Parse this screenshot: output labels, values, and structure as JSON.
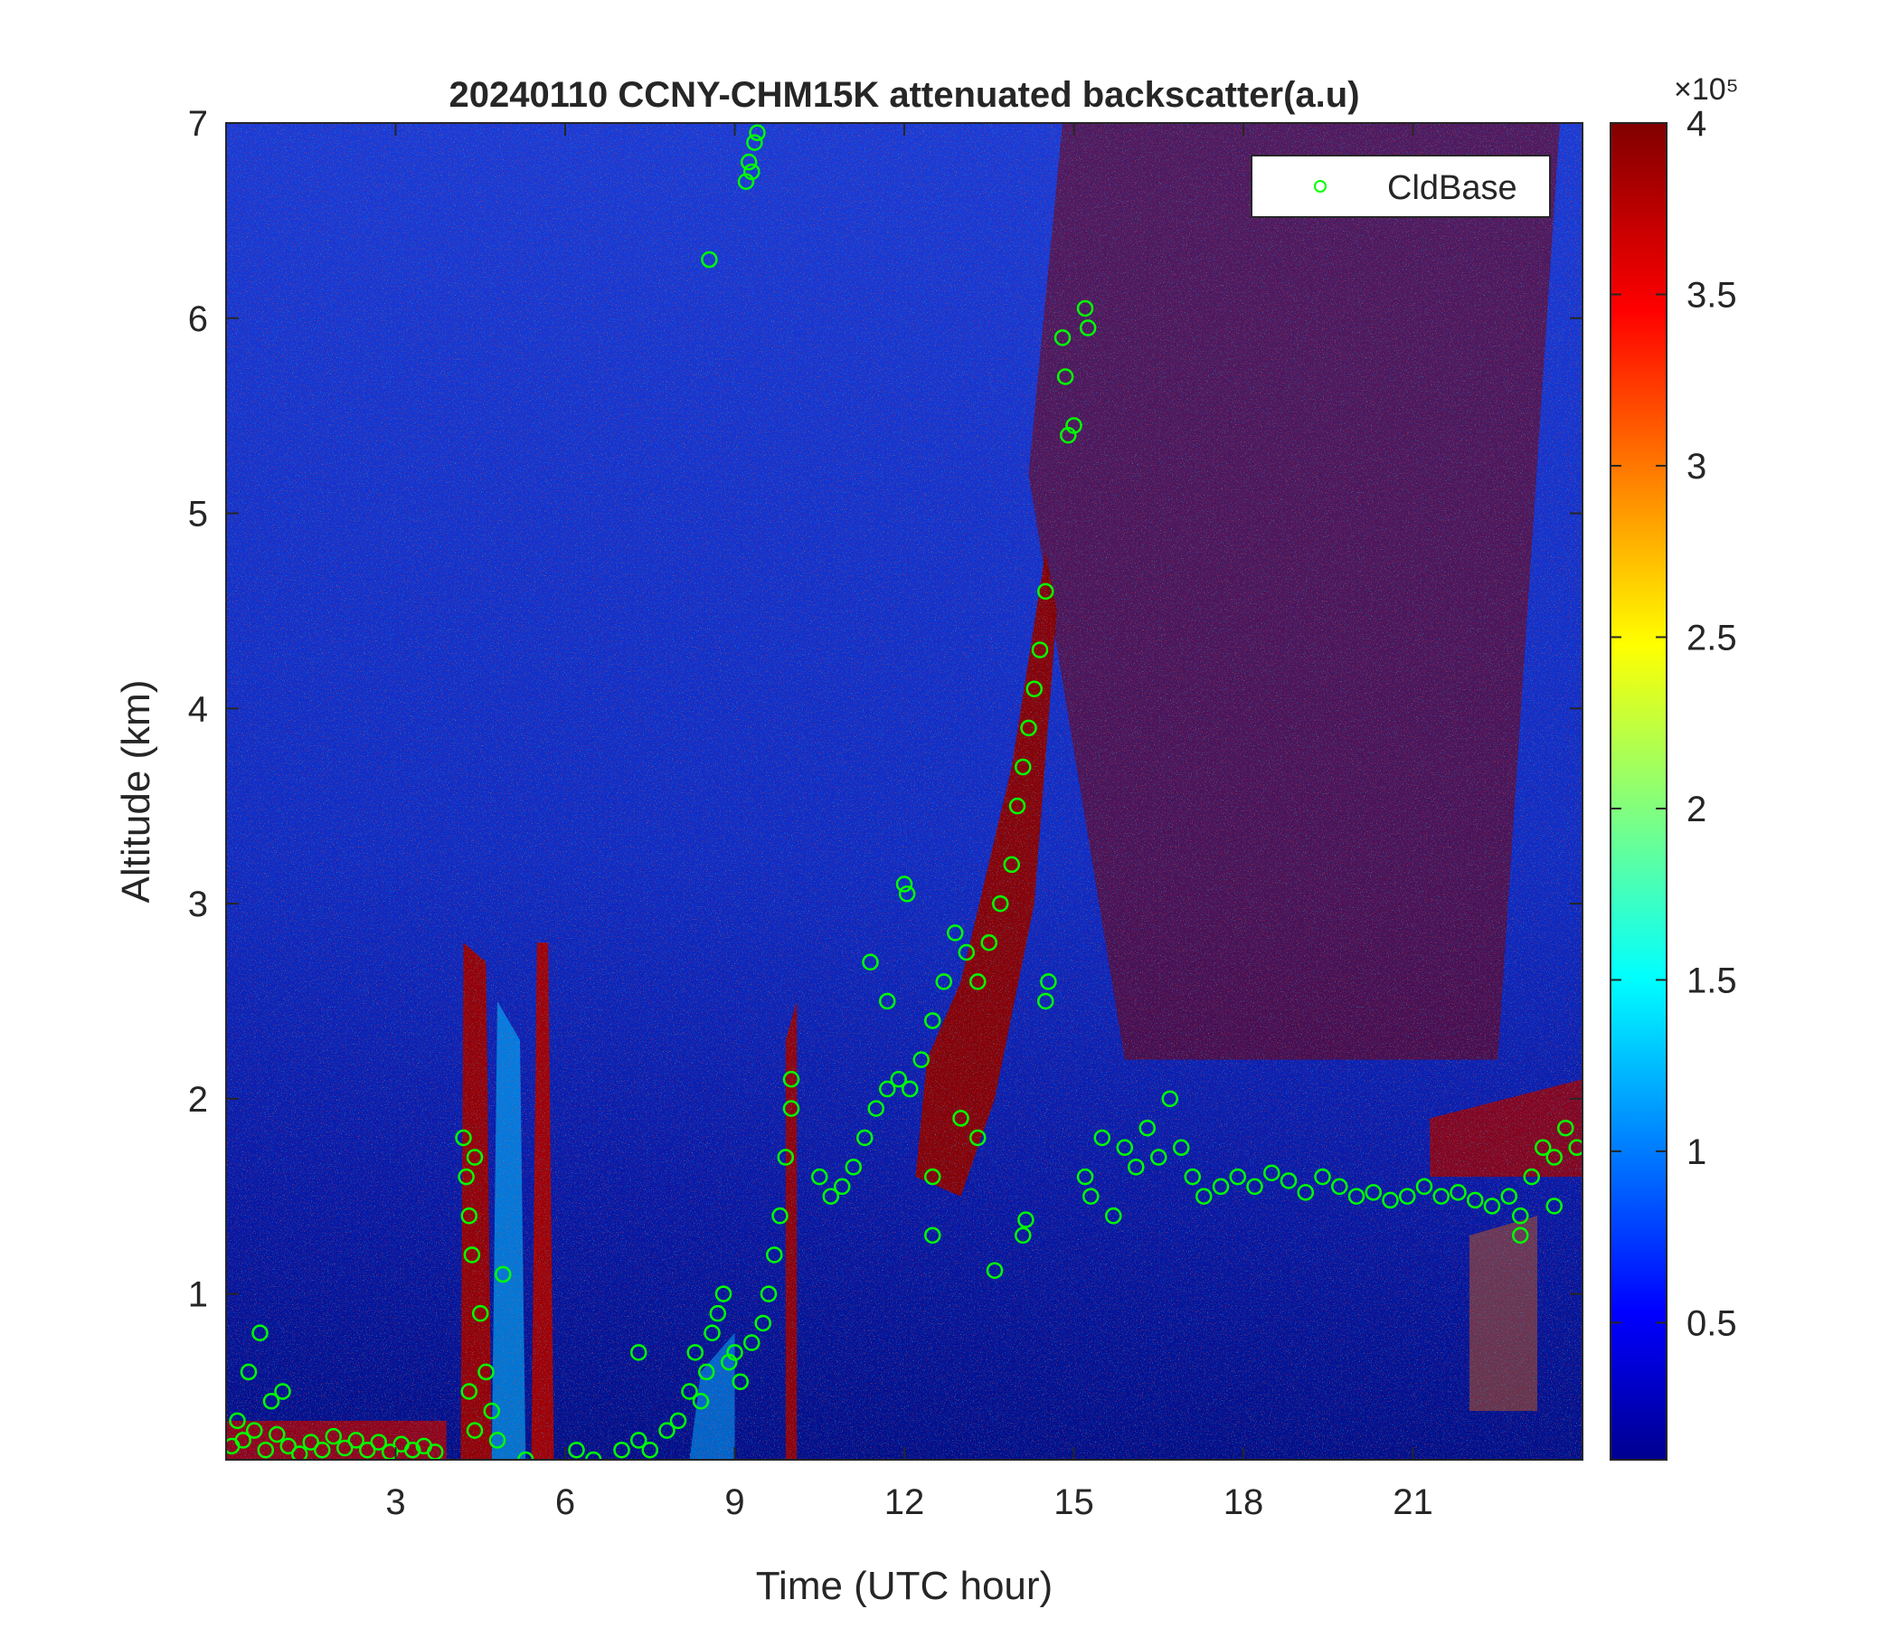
{
  "chart_data": {
    "type": "heatmap",
    "title": "20240110 CCNY-CHM15K attenuated backscatter(a.u)",
    "xlabel": "Time (UTC hour)",
    "ylabel": "Altitude (km)",
    "xlim": [
      0,
      24
    ],
    "ylim": [
      0.15,
      7
    ],
    "xticks": [
      3,
      6,
      9,
      12,
      15,
      18,
      21
    ],
    "yticks": [
      1,
      2,
      3,
      4,
      5,
      6,
      7
    ],
    "colorbar": {
      "colormap": "jet",
      "clim": [
        10000,
        400000
      ],
      "exponent_label": "×10⁵",
      "ticks": [
        0.5,
        1,
        1.5,
        2,
        2.5,
        3,
        3.5,
        4
      ]
    },
    "legend": {
      "position": "top-right",
      "entries": [
        "CldBase"
      ]
    },
    "series": [
      {
        "name": "CldBase",
        "marker": "circle",
        "color": "#00ff00",
        "points": [
          [
            0.1,
            0.22
          ],
          [
            0.3,
            0.25
          ],
          [
            0.5,
            0.3
          ],
          [
            0.7,
            0.2
          ],
          [
            0.9,
            0.28
          ],
          [
            1.1,
            0.22
          ],
          [
            1.3,
            0.18
          ],
          [
            1.5,
            0.24
          ],
          [
            1.7,
            0.2
          ],
          [
            1.9,
            0.27
          ],
          [
            2.1,
            0.21
          ],
          [
            2.3,
            0.25
          ],
          [
            2.5,
            0.2
          ],
          [
            2.7,
            0.24
          ],
          [
            2.9,
            0.19
          ],
          [
            3.1,
            0.23
          ],
          [
            3.3,
            0.2
          ],
          [
            3.5,
            0.22
          ],
          [
            3.7,
            0.19
          ],
          [
            0.6,
            0.8
          ],
          [
            0.4,
            0.6
          ],
          [
            0.8,
            0.45
          ],
          [
            1.0,
            0.5
          ],
          [
            0.2,
            0.35
          ],
          [
            4.2,
            1.8
          ],
          [
            4.25,
            1.6
          ],
          [
            4.3,
            1.4
          ],
          [
            4.35,
            1.2
          ],
          [
            4.4,
            1.7
          ],
          [
            4.5,
            0.9
          ],
          [
            4.6,
            0.6
          ],
          [
            4.7,
            0.4
          ],
          [
            4.8,
            0.25
          ],
          [
            4.9,
            1.1
          ],
          [
            4.3,
            0.5
          ],
          [
            4.4,
            0.3
          ],
          [
            5.3,
            0.15
          ],
          [
            6.2,
            0.2
          ],
          [
            6.5,
            0.15
          ],
          [
            7.0,
            0.2
          ],
          [
            7.3,
            0.25
          ],
          [
            7.5,
            0.2
          ],
          [
            7.8,
            0.3
          ],
          [
            8.0,
            0.35
          ],
          [
            8.2,
            0.5
          ],
          [
            8.3,
            0.7
          ],
          [
            8.4,
            0.45
          ],
          [
            8.5,
            0.6
          ],
          [
            8.6,
            0.8
          ],
          [
            8.7,
            0.9
          ],
          [
            8.8,
            1.0
          ],
          [
            8.9,
            0.65
          ],
          [
            9.0,
            0.7
          ],
          [
            9.1,
            0.55
          ],
          [
            9.3,
            0.75
          ],
          [
            9.5,
            0.85
          ],
          [
            9.6,
            1.0
          ],
          [
            9.7,
            1.2
          ],
          [
            9.8,
            1.4
          ],
          [
            9.9,
            1.7
          ],
          [
            10.0,
            2.1
          ],
          [
            10.0,
            1.95
          ],
          [
            7.3,
            0.7
          ],
          [
            8.55,
            6.3
          ],
          [
            9.2,
            6.7
          ],
          [
            9.25,
            6.8
          ],
          [
            9.3,
            6.75
          ],
          [
            9.35,
            6.9
          ],
          [
            9.4,
            6.95
          ],
          [
            10.5,
            1.6
          ],
          [
            10.7,
            1.5
          ],
          [
            10.9,
            1.55
          ],
          [
            11.1,
            1.65
          ],
          [
            11.3,
            1.8
          ],
          [
            11.5,
            1.95
          ],
          [
            11.7,
            2.05
          ],
          [
            11.9,
            2.1
          ],
          [
            12.1,
            2.05
          ],
          [
            12.3,
            2.2
          ],
          [
            12.5,
            2.4
          ],
          [
            12.7,
            2.6
          ],
          [
            12.9,
            2.85
          ],
          [
            13.1,
            2.75
          ],
          [
            13.3,
            2.6
          ],
          [
            13.5,
            2.8
          ],
          [
            13.7,
            3.0
          ],
          [
            13.9,
            3.2
          ],
          [
            14.0,
            3.5
          ],
          [
            14.1,
            3.7
          ],
          [
            14.2,
            3.9
          ],
          [
            14.3,
            4.1
          ],
          [
            14.4,
            4.3
          ],
          [
            14.5,
            4.6
          ],
          [
            11.4,
            2.7
          ],
          [
            11.7,
            2.5
          ],
          [
            12.0,
            3.1
          ],
          [
            12.05,
            3.05
          ],
          [
            12.5,
            1.3
          ],
          [
            12.5,
            1.6
          ],
          [
            13.0,
            1.9
          ],
          [
            13.3,
            1.8
          ],
          [
            13.6,
            1.12
          ],
          [
            14.1,
            1.3
          ],
          [
            14.15,
            1.38
          ],
          [
            14.5,
            2.5
          ],
          [
            14.55,
            2.6
          ],
          [
            14.9,
            5.4
          ],
          [
            15.0,
            5.45
          ],
          [
            14.85,
            5.7
          ],
          [
            14.8,
            5.9
          ],
          [
            15.2,
            6.05
          ],
          [
            15.25,
            5.95
          ],
          [
            15.2,
            1.6
          ],
          [
            15.3,
            1.5
          ],
          [
            15.5,
            1.8
          ],
          [
            15.7,
            1.4
          ],
          [
            15.9,
            1.75
          ],
          [
            16.1,
            1.65
          ],
          [
            16.3,
            1.85
          ],
          [
            16.5,
            1.7
          ],
          [
            16.7,
            2.0
          ],
          [
            16.9,
            1.75
          ],
          [
            17.1,
            1.6
          ],
          [
            17.3,
            1.5
          ],
          [
            17.6,
            1.55
          ],
          [
            17.9,
            1.6
          ],
          [
            18.2,
            1.55
          ],
          [
            18.5,
            1.62
          ],
          [
            18.8,
            1.58
          ],
          [
            19.1,
            1.52
          ],
          [
            19.4,
            1.6
          ],
          [
            19.7,
            1.55
          ],
          [
            20.0,
            1.5
          ],
          [
            20.3,
            1.52
          ],
          [
            20.6,
            1.48
          ],
          [
            20.9,
            1.5
          ],
          [
            21.2,
            1.55
          ],
          [
            21.5,
            1.5
          ],
          [
            21.8,
            1.52
          ],
          [
            22.1,
            1.48
          ],
          [
            22.4,
            1.45
          ],
          [
            22.7,
            1.5
          ],
          [
            22.9,
            1.4
          ],
          [
            23.1,
            1.6
          ],
          [
            23.3,
            1.75
          ],
          [
            23.5,
            1.7
          ],
          [
            23.7,
            1.85
          ],
          [
            23.9,
            1.75
          ],
          [
            22.9,
            1.3
          ],
          [
            23.5,
            1.45
          ]
        ]
      }
    ],
    "backscatter_features": [
      "low aerosol layer below 0.3 km, 0-4 UTC",
      "cloud columns up to 2.8 km near 4.3 and 5.5 UTC",
      "rising cloud layer from 2 km at 10 UTC to 5 km at 14.8 UTC",
      "high backscatter above 2.5 km from 16 to 21 UTC",
      "cloud layer near 1.5-2 km from 15.5 to 24 UTC"
    ]
  }
}
